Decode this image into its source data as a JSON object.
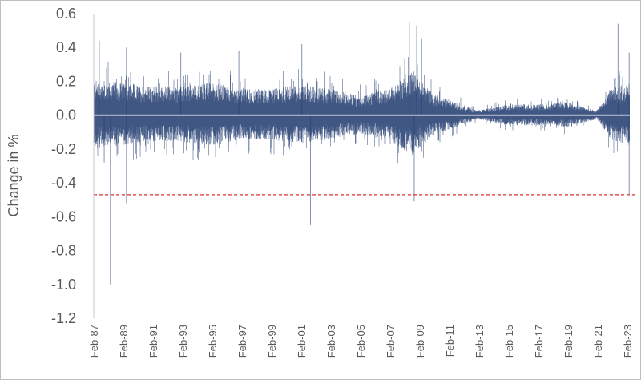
{
  "chart_data": {
    "type": "bar",
    "title": "",
    "xlabel": "",
    "ylabel": "Change in %",
    "ylim": [
      -1.2,
      0.6
    ],
    "yticks": [
      "0.6",
      "0.4",
      "0.2",
      "0.0",
      "-0.2",
      "-0.4",
      "-0.6",
      "-0.8",
      "-1.0",
      "-1.2"
    ],
    "xticks": [
      "Feb-87",
      "Feb-89",
      "Feb-91",
      "Feb-93",
      "Feb-95",
      "Feb-97",
      "Feb-99",
      "Feb-01",
      "Feb-03",
      "Feb-05",
      "Feb-07",
      "Feb-09",
      "Feb-11",
      "Feb-13",
      "Feb-15",
      "Feb-17",
      "Feb-19",
      "Feb-21",
      "Feb-23"
    ],
    "xrange": [
      "1987-02",
      "2023-04"
    ],
    "frequency": "daily",
    "grid": false,
    "series_color": "#1f3a6e",
    "reference_line": {
      "value": -0.47,
      "color": "#e03030",
      "style": "dashed"
    },
    "volatility_envelope": [
      {
        "year": 1987,
        "amp": 0.16
      },
      {
        "year": 1989,
        "amp": 0.15
      },
      {
        "year": 1991,
        "amp": 0.13
      },
      {
        "year": 1993,
        "amp": 0.13
      },
      {
        "year": 1995,
        "amp": 0.15
      },
      {
        "year": 1997,
        "amp": 0.12
      },
      {
        "year": 1999,
        "amp": 0.12
      },
      {
        "year": 2001,
        "amp": 0.14
      },
      {
        "year": 2003,
        "amp": 0.12
      },
      {
        "year": 2005,
        "amp": 0.09
      },
      {
        "year": 2007,
        "amp": 0.12
      },
      {
        "year": 2008.5,
        "amp": 0.2
      },
      {
        "year": 2010,
        "amp": 0.1
      },
      {
        "year": 2011.5,
        "amp": 0.06
      },
      {
        "year": 2013,
        "amp": 0.02
      },
      {
        "year": 2015,
        "amp": 0.05
      },
      {
        "year": 2017,
        "amp": 0.05
      },
      {
        "year": 2019,
        "amp": 0.06
      },
      {
        "year": 2021,
        "amp": 0.02
      },
      {
        "year": 2022,
        "amp": 0.12
      },
      {
        "year": 2023.3,
        "amp": 0.15
      }
    ],
    "notable_points": [
      {
        "date": "1987-06",
        "value": 0.44
      },
      {
        "date": "1987-10",
        "value": -0.28
      },
      {
        "date": "1988-03",
        "value": -1.0
      },
      {
        "date": "1989-04",
        "value": 0.4
      },
      {
        "date": "1989-04",
        "value": -0.52
      },
      {
        "date": "1992-12",
        "value": 0.37
      },
      {
        "date": "1996-11",
        "value": 0.38
      },
      {
        "date": "2001-02",
        "value": 0.42
      },
      {
        "date": "2001-09",
        "value": -0.65
      },
      {
        "date": "2008-05",
        "value": 0.55
      },
      {
        "date": "2008-09",
        "value": -0.51
      },
      {
        "date": "2008-11",
        "value": 0.53
      },
      {
        "date": "2009-03",
        "value": 0.45
      },
      {
        "date": "2022-06",
        "value": 0.54
      },
      {
        "date": "2023-03",
        "value": 0.37
      },
      {
        "date": "2023-03",
        "value": -0.47
      }
    ]
  }
}
